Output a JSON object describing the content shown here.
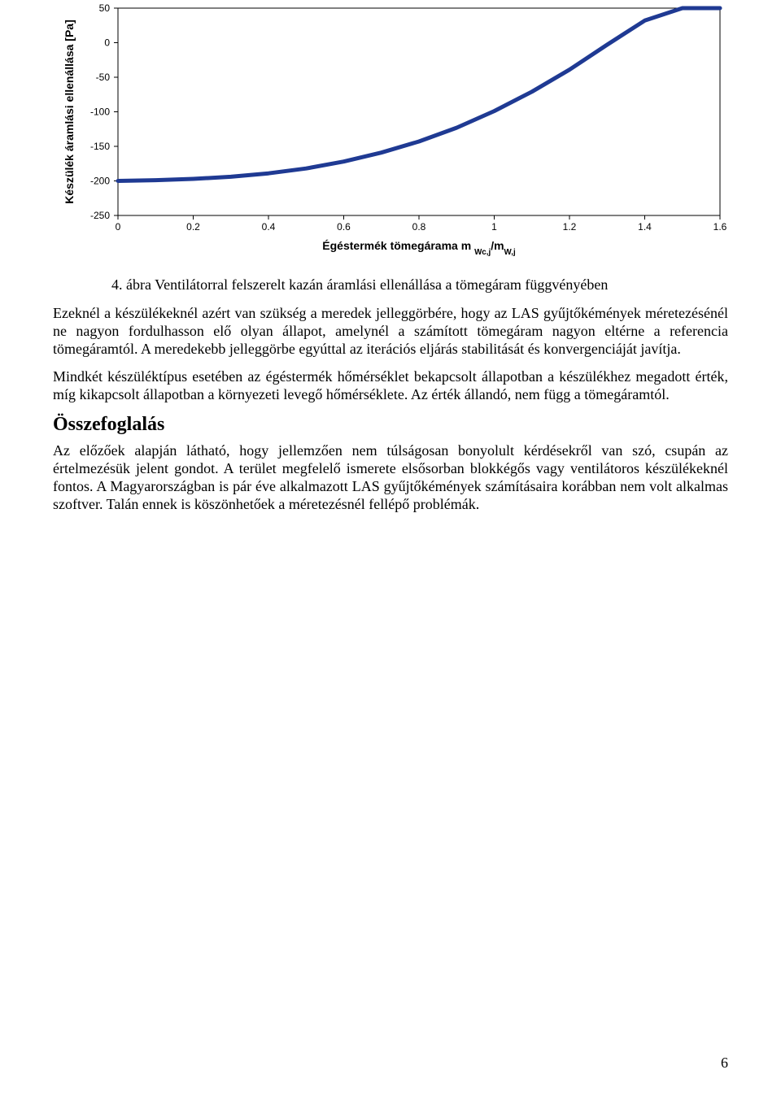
{
  "chart": {
    "type": "line",
    "line_color": "#1f3a93",
    "line_width": 5,
    "background_color": "#ffffff",
    "axis_color": "#000000",
    "grid_color": "#c0c0c0",
    "xlabel": "Égéstermék tömegárama m",
    "xlabel_sub": "Wc,j",
    "xlabel_sep": "/m",
    "xlabel_sub2": "W,j",
    "ylabel": "Készülék áramlási ellenállása [Pa]",
    "xlabel_fontsize": 14,
    "ylabel_fontsize": 14,
    "tick_fontsize": 12,
    "xlim": [
      0,
      1.6
    ],
    "ylim": [
      -250,
      50
    ],
    "xticks": [
      0,
      0.2,
      0.4,
      0.6,
      0.8,
      1,
      1.2,
      1.4,
      1.6
    ],
    "yticks": [
      50,
      0,
      -50,
      -100,
      -150,
      -200,
      -250
    ],
    "data_x": [
      0,
      0.1,
      0.2,
      0.3,
      0.4,
      0.5,
      0.6,
      0.7,
      0.8,
      0.9,
      1.0,
      1.1,
      1.2,
      1.3,
      1.4,
      1.5,
      1.6
    ],
    "data_y": [
      -200,
      -199,
      -197,
      -194,
      -189,
      -182,
      -172,
      -159,
      -143,
      -123,
      -99,
      -71,
      -39,
      -3,
      32,
      50,
      50
    ]
  },
  "caption": "4. ábra Ventilátorral felszerelt kazán áramlási ellenállása a tömegáram függvényében",
  "para1": "Ezeknél a készülékeknél azért van szükség a meredek jelleggörbére, hogy az LAS gyűjtőkémények méretezésénél ne nagyon fordulhasson elő olyan állapot, amelynél a számított tömegáram nagyon eltérne a referencia tömegáramtól. A meredekebb jelleggörbe egyúttal az iterációs eljárás stabilitását és konvergenciáját javítja.",
  "para2": "Mindkét készüléktípus esetében az égéstermék hőmérséklet bekapcsolt állapotban a készülékhez megadott érték, míg kikapcsolt állapotban a környezeti levegő hőmérséklete. Az érték állandó, nem függ a tömegáramtól.",
  "heading": "Összefoglalás",
  "para3": "Az előzőek alapján látható, hogy jellemzően nem túlságosan bonyolult kérdésekről van szó, csupán az értelmezésük jelent gondot. A terület megfelelő ismerete elsősorban blokkégős vagy ventilátoros készülékeknél fontos. A Magyarországban is pár éve alkalmazott LAS gyűjtőkémények számításaira korábban nem volt alkalmas szoftver. Talán ennek is köszönhetőek a méretezésnél fellépő problémák.",
  "page_number": "6"
}
